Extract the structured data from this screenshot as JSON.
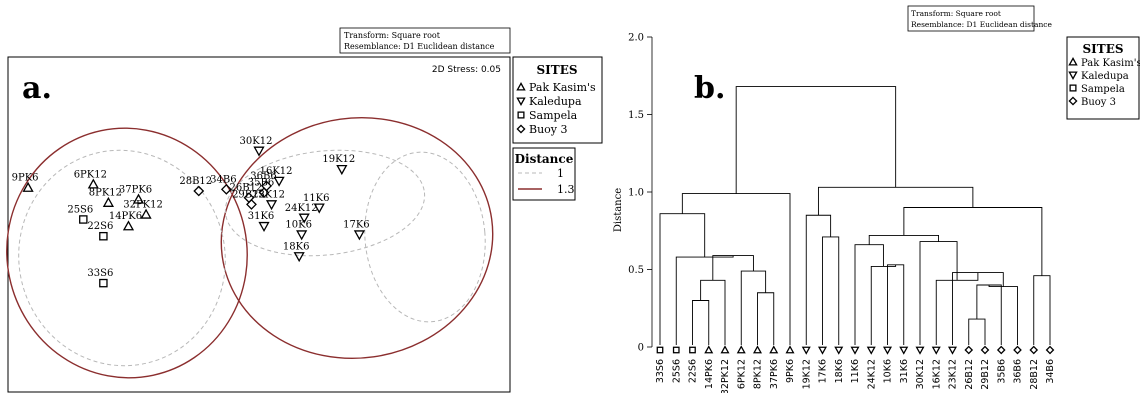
{
  "panel_a": {
    "panel_label": "a.",
    "transform_note": "Transform: Square root",
    "resemblance_note": "Resemblance: D1 Euclidean distance",
    "stress_label": "2D Stress: 0.05",
    "sites_title": "SITES",
    "distance_title": "Distance"
  },
  "panel_b": {
    "panel_label": "b.",
    "transform_note": "Transform: Square root",
    "resemblance_note": "Resemblance: D1 Euclidean distance",
    "sites_title": "SITES"
  },
  "sites": [
    {
      "name": "Pak Kasim's",
      "marker": "triangle-up"
    },
    {
      "name": "Kaledupa",
      "marker": "triangle-down"
    },
    {
      "name": "Sampela",
      "marker": "square"
    },
    {
      "name": "Buoy 3",
      "marker": "diamond"
    }
  ],
  "chart_data": [
    {
      "type": "scatter",
      "title": "",
      "xlabel": "",
      "ylabel": "",
      "subtype": "nMDS ordination",
      "stress": 0.05,
      "xlim": [
        -1,
        1
      ],
      "ylim": [
        -1,
        1
      ],
      "points": [
        {
          "label": "9PK6",
          "site": "Pak Kasim's",
          "x": -0.92,
          "y": 0.22
        },
        {
          "label": "6PK12",
          "site": "Pak Kasim's",
          "x": -0.66,
          "y": 0.24
        },
        {
          "label": "8PK12",
          "site": "Pak Kasim's",
          "x": -0.6,
          "y": 0.13
        },
        {
          "label": "37PK6",
          "site": "Pak Kasim's",
          "x": -0.48,
          "y": 0.15
        },
        {
          "label": "32PK12",
          "site": "Pak Kasim's",
          "x": -0.45,
          "y": 0.06
        },
        {
          "label": "14PK6",
          "site": "Pak Kasim's",
          "x": -0.52,
          "y": -0.01
        },
        {
          "label": "25S6",
          "site": "Sampela",
          "x": -0.7,
          "y": 0.03
        },
        {
          "label": "22S6",
          "site": "Sampela",
          "x": -0.62,
          "y": -0.07
        },
        {
          "label": "33S6",
          "site": "Sampela",
          "x": -0.62,
          "y": -0.35
        },
        {
          "label": "30K12",
          "site": "Kaledupa",
          "x": 0.0,
          "y": 0.44
        },
        {
          "label": "16K12",
          "site": "Kaledupa",
          "x": 0.08,
          "y": 0.26
        },
        {
          "label": "36B6",
          "site": "Buoy 3",
          "x": 0.03,
          "y": 0.23
        },
        {
          "label": "26B12",
          "site": "Buoy 3",
          "x": -0.04,
          "y": 0.16
        },
        {
          "label": "29B12",
          "site": "Buoy 3",
          "x": -0.03,
          "y": 0.12
        },
        {
          "label": "35B6",
          "site": "Buoy 3",
          "x": 0.02,
          "y": 0.19
        },
        {
          "label": "23K12",
          "site": "Kaledupa",
          "x": 0.05,
          "y": 0.12
        },
        {
          "label": "31K6",
          "site": "Kaledupa",
          "x": 0.02,
          "y": -0.01
        },
        {
          "label": "28B12",
          "site": "Buoy 3",
          "x": -0.24,
          "y": 0.2
        },
        {
          "label": "34B6",
          "site": "Buoy 3",
          "x": -0.13,
          "y": 0.21
        },
        {
          "label": "19K12",
          "site": "Kaledupa",
          "x": 0.33,
          "y": 0.33
        },
        {
          "label": "11K6",
          "site": "Kaledupa",
          "x": 0.24,
          "y": 0.1
        },
        {
          "label": "24K12",
          "site": "Kaledupa",
          "x": 0.18,
          "y": 0.04
        },
        {
          "label": "10K6",
          "site": "Kaledupa",
          "x": 0.17,
          "y": -0.06
        },
        {
          "label": "18K6",
          "site": "Kaledupa",
          "x": 0.16,
          "y": -0.19
        },
        {
          "label": "17K6",
          "site": "Kaledupa",
          "x": 0.4,
          "y": -0.06
        }
      ],
      "legend": [
        {
          "name": "1",
          "style": "dashed",
          "color": "#b8b8b8"
        },
        {
          "name": "1.3",
          "style": "solid",
          "color": "#8b2e2e"
        }
      ]
    },
    {
      "type": "dendrogram",
      "title": "",
      "xlabel": "",
      "ylabel": "Distance",
      "ylim": [
        0,
        2.0
      ],
      "yticks": [
        0,
        0.5,
        1.0,
        1.5,
        2.0
      ],
      "ytick_labels": [
        "0",
        "0.5",
        "1.0",
        "1.5",
        "2.0"
      ],
      "leaves": [
        {
          "label": "33S6",
          "site": "Sampela"
        },
        {
          "label": "25S6",
          "site": "Sampela"
        },
        {
          "label": "22S6",
          "site": "Sampela"
        },
        {
          "label": "14PK6",
          "site": "Pak Kasim's"
        },
        {
          "label": "32PK12",
          "site": "Pak Kasim's"
        },
        {
          "label": "6PK12",
          "site": "Pak Kasim's"
        },
        {
          "label": "8PK12",
          "site": "Pak Kasim's"
        },
        {
          "label": "37PK6",
          "site": "Pak Kasim's"
        },
        {
          "label": "9PK6",
          "site": "Pak Kasim's"
        },
        {
          "label": "19K12",
          "site": "Kaledupa"
        },
        {
          "label": "17K6",
          "site": "Kaledupa"
        },
        {
          "label": "18K6",
          "site": "Kaledupa"
        },
        {
          "label": "11K6",
          "site": "Kaledupa"
        },
        {
          "label": "24K12",
          "site": "Kaledupa"
        },
        {
          "label": "10K6",
          "site": "Kaledupa"
        },
        {
          "label": "31K6",
          "site": "Kaledupa"
        },
        {
          "label": "30K12",
          "site": "Kaledupa"
        },
        {
          "label": "16K12",
          "site": "Kaledupa"
        },
        {
          "label": "23K12",
          "site": "Kaledupa"
        },
        {
          "label": "26B12",
          "site": "Buoy 3"
        },
        {
          "label": "29B12",
          "site": "Buoy 3"
        },
        {
          "label": "35B6",
          "site": "Buoy 3"
        },
        {
          "label": "36B6",
          "site": "Buoy 3"
        },
        {
          "label": "28B12",
          "site": "Buoy 3"
        },
        {
          "label": "34B6",
          "site": "Buoy 3"
        }
      ],
      "merges": [
        {
          "a": 2,
          "b": 3,
          "h": 0.3
        },
        {
          "a": 6,
          "b": 7,
          "h": 0.35
        },
        {
          "a": 4,
          "b": "m0",
          "h": 0.43
        },
        {
          "a": 5,
          "b": "m1",
          "h": 0.49
        },
        {
          "a": "m2",
          "b": "m3",
          "h": 0.59
        },
        {
          "a": 1,
          "b": "m4",
          "h": 0.58
        },
        {
          "a": 0,
          "b": "m5",
          "h": 0.86
        },
        {
          "a": 11,
          "b": 10,
          "h": 0.71
        },
        {
          "a": 9,
          "b": "m7",
          "h": 0.85
        },
        {
          "a": 14,
          "b": 15,
          "h": 0.53
        },
        {
          "a": 13,
          "b": "m9",
          "h": 0.52
        },
        {
          "a": 12,
          "b": "m10",
          "h": 0.66
        },
        {
          "a": 19,
          "b": 20,
          "h": 0.18
        },
        {
          "a": "m12",
          "b": 21,
          "h": 0.4
        },
        {
          "a": "m13",
          "b": 22,
          "h": 0.39
        },
        {
          "a": 18,
          "b": "m14",
          "h": 0.48
        },
        {
          "a": 17,
          "b": "m15",
          "h": 0.43
        },
        {
          "a": 16,
          "b": "m16",
          "h": 0.68
        },
        {
          "a": "m11",
          "b": "m17",
          "h": 0.72
        },
        {
          "a": 23,
          "b": 24,
          "h": 0.46
        },
        {
          "a": "m18",
          "b": "m19",
          "h": 0.9
        },
        {
          "a": "m8",
          "b": "m20",
          "h": 1.03
        },
        {
          "a": "m6",
          "b": 8,
          "h": 0.99
        },
        {
          "a": "m22",
          "b": "m21",
          "h": 1.68
        }
      ]
    }
  ]
}
